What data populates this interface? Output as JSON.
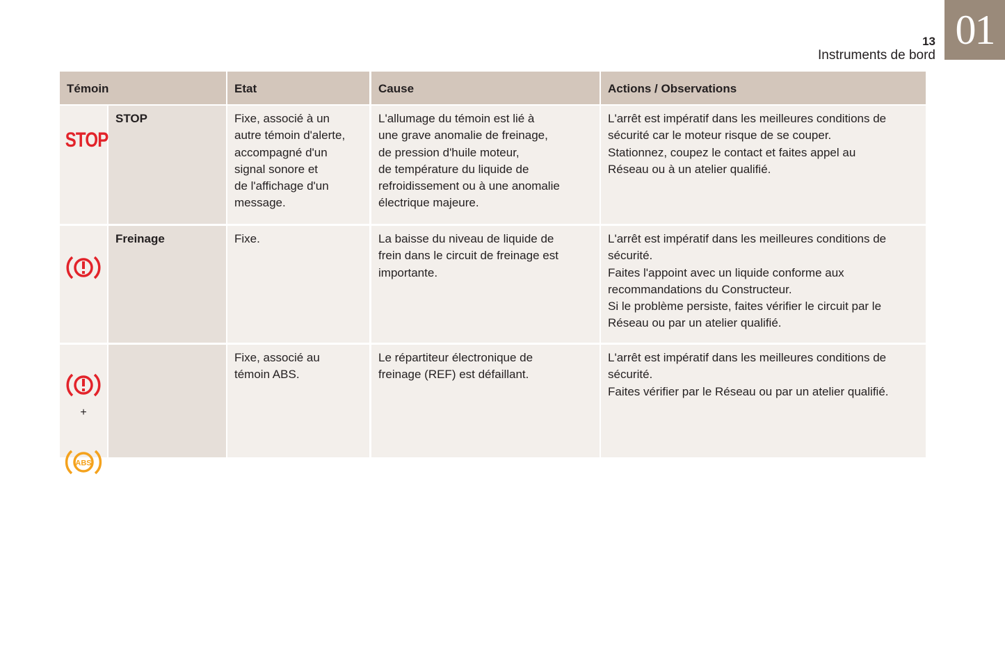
{
  "header": {
    "chapter": "01",
    "page_number": "13",
    "section": "Instruments de bord"
  },
  "table": {
    "columns": [
      "Témoin",
      "Etat",
      "Cause",
      "Actions / Observations"
    ],
    "rows": [
      {
        "icon": "stop-warning-icon",
        "icon_text": "STOP",
        "name": "STOP",
        "etat": "Fixe, associé à un\nautre témoin d'alerte,\naccompagné d'un\nsignal sonore et\nde l'affichage d'un\nmessage.",
        "cause": "L'allumage du témoin est lié à\nune grave anomalie de freinage,\nde pression d'huile moteur,\nde température du liquide de\nrefroidissement ou à une anomalie\nélectrique majeure.",
        "actions": "L'arrêt est impératif dans les meilleures conditions de\nsécurité car le moteur risque de se couper.\nStationnez, coupez le contact et faites appel au\nRéseau ou à un atelier qualifié."
      },
      {
        "icon": "brake-warning-icon",
        "name": "Freinage",
        "etat": "Fixe.",
        "cause": "La baisse du niveau de liquide de\nfrein dans le circuit de freinage est\nimportante.",
        "actions": "L'arrêt est impératif dans les meilleures conditions de\nsécurité.\nFaites l'appoint avec un liquide conforme aux\nrecommandations du Constructeur.\nSi le problème persiste, faites vérifier le circuit par le\nRéseau ou par un atelier qualifié."
      },
      {
        "icon": "brake-warning-icon",
        "icon_plus": "+",
        "icon2": "abs-warning-icon",
        "icon2_text": "ABS",
        "name": "",
        "etat": "Fixe, associé au\ntémoin ABS.",
        "cause": "Le répartiteur électronique de\nfreinage (REF) est défaillant.",
        "actions": "L'arrêt est impératif dans les meilleures conditions de\nsécurité.\nFaites vérifier par le Réseau ou par un atelier qualifié."
      }
    ]
  },
  "colors": {
    "header_bg": "#d3c6bb",
    "chapter_bg": "#9a8a7a",
    "red": "#e2232a",
    "amber": "#f4a21d"
  }
}
